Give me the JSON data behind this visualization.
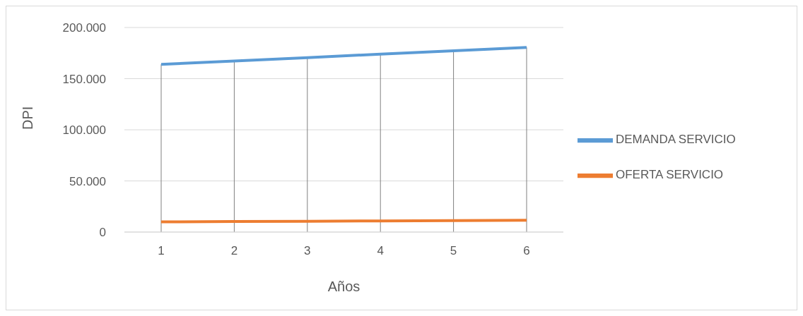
{
  "chart_data": {
    "type": "line",
    "xlabel": "Años",
    "ylabel": "DPI",
    "categories": [
      "1",
      "2",
      "3",
      "4",
      "5",
      "6"
    ],
    "series": [
      {
        "name": "DEMANDA SERVICIO",
        "color": "#5b9bd5",
        "values": [
          164000,
          167300,
          170600,
          174000,
          177300,
          180600
        ]
      },
      {
        "name": "OFERTA SERVICIO",
        "color": "#ed7d31",
        "values": [
          10000,
          10300,
          10600,
          10900,
          11200,
          11500
        ]
      }
    ],
    "ylim": [
      0,
      200000
    ],
    "yticks": [
      {
        "value": 0,
        "label": "0"
      },
      {
        "value": 50000,
        "label": "50.000"
      },
      {
        "value": 100000,
        "label": "100.000"
      },
      {
        "value": 150000,
        "label": "150.000"
      },
      {
        "value": 200000,
        "label": "200.000"
      }
    ],
    "ref_lines": [
      {
        "axis": "x",
        "value": "1",
        "color": "#808080"
      },
      {
        "axis": "x",
        "value": "2",
        "color": "#808080"
      },
      {
        "axis": "x",
        "value": "3",
        "color": "#808080"
      },
      {
        "axis": "x",
        "value": "4",
        "color": "#808080"
      },
      {
        "axis": "x",
        "value": "5",
        "color": "#808080"
      },
      {
        "axis": "x",
        "value": "6",
        "color": "#808080"
      }
    ],
    "grid": "y",
    "legend": "right",
    "marker": "none",
    "line_style": "solid"
  }
}
